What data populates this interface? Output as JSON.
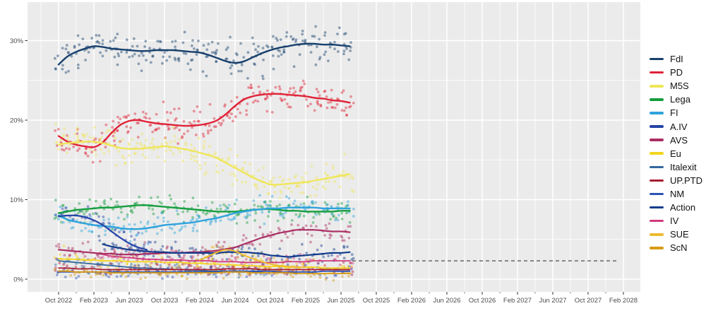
{
  "chart_data": {
    "type": "scatter",
    "title": "",
    "description": "Opinion polling trend chart: per-party poll results (scatter) with smoothed trend lines, October 2022 to July 2025, axis extended to February 2028",
    "panel_background": "#ebebeb",
    "gridline_color": "#ffffff",
    "axis_text_color": "#4d4d4d",
    "y_tick_labels": [
      "0%",
      "10%",
      "20%",
      "30%"
    ],
    "y_tick_values": [
      0,
      10,
      20,
      30
    ],
    "y_minor_gridlines": [
      5,
      15,
      25
    ],
    "y_axis_range": [
      0,
      33
    ],
    "x_tick_labels": [
      "Oct 2022",
      "Feb 2023",
      "Jun 2023",
      "Oct 2023",
      "Feb 2024",
      "Jun 2024",
      "Oct 2024",
      "Feb 2025",
      "Jun 2025",
      "Oct 2025",
      "Feb 2026",
      "Jun 2026",
      "Oct 2026",
      "Feb 2027",
      "Jun 2027",
      "Oct 2027",
      "Feb 2028"
    ],
    "x_tick_interval_months": 4,
    "x_start_month": "Oct 2022",
    "data_end_month": "Jul 2025",
    "legend_position": "right",
    "grid": true,
    "threshold_line": {
      "pct": 2.3,
      "style": "dashed",
      "color": "#4d4d4d",
      "spans": "from end of poll data to right edge"
    },
    "series": [
      {
        "name": "FdI",
        "color": "#17406d",
        "width": 2.4,
        "start": 0,
        "dots": 7,
        "spread": 1.1,
        "values": [
          27.0,
          28.0,
          28.6,
          29.0,
          29.3,
          29.2,
          29.0,
          28.9,
          28.8,
          28.7,
          28.7,
          28.8,
          28.8,
          28.8,
          28.7,
          28.6,
          28.5,
          28.2,
          27.8,
          27.4,
          27.2,
          27.4,
          27.9,
          28.4,
          28.8,
          29.1,
          29.3,
          29.5,
          29.6,
          29.6,
          29.5,
          29.5,
          29.4,
          29.3
        ]
      },
      {
        "name": "PD",
        "color": "#e02338",
        "width": 2.4,
        "start": 0,
        "dots": 7,
        "spread": 1.0,
        "values": [
          18.0,
          17.3,
          16.9,
          16.7,
          16.6,
          17.2,
          18.4,
          19.4,
          19.9,
          20.0,
          19.8,
          19.6,
          19.5,
          19.4,
          19.3,
          19.3,
          19.4,
          19.6,
          20.0,
          20.8,
          21.8,
          22.6,
          23.0,
          23.2,
          23.3,
          23.3,
          23.2,
          23.1,
          23.0,
          22.8,
          22.7,
          22.5,
          22.4,
          22.2
        ]
      },
      {
        "name": "M5S",
        "color": "#efe65a",
        "width": 2.4,
        "start": 0,
        "dots": 7,
        "spread": 1.0,
        "values": [
          16.9,
          17.1,
          17.2,
          17.3,
          17.3,
          17.1,
          16.8,
          16.5,
          16.4,
          16.4,
          16.5,
          16.6,
          16.7,
          16.6,
          16.4,
          16.2,
          15.9,
          15.6,
          15.2,
          14.6,
          14.0,
          13.4,
          12.8,
          12.3,
          11.9,
          11.9,
          12.0,
          12.1,
          12.2,
          12.4,
          12.6,
          12.8,
          13.0,
          13.2
        ]
      },
      {
        "name": "Lega",
        "color": "#169e3e",
        "width": 2.4,
        "start": 0,
        "dots": 5,
        "spread": 0.75,
        "values": [
          8.3,
          8.5,
          8.7,
          8.8,
          8.9,
          9.0,
          9.0,
          9.1,
          9.2,
          9.3,
          9.3,
          9.2,
          9.1,
          9.0,
          8.9,
          8.8,
          8.7,
          8.6,
          8.5,
          8.5,
          8.5,
          8.6,
          8.7,
          8.8,
          8.8,
          8.7,
          8.6,
          8.6,
          8.5,
          8.5,
          8.5,
          8.5,
          8.6,
          8.6
        ]
      },
      {
        "name": "FI",
        "color": "#2fa3dc",
        "width": 2.4,
        "start": 0,
        "dots": 5,
        "spread": 0.75,
        "values": [
          8.0,
          7.5,
          7.2,
          7.0,
          6.8,
          6.7,
          6.6,
          6.4,
          6.3,
          6.3,
          6.4,
          6.6,
          6.8,
          6.9,
          7.0,
          7.1,
          7.3,
          7.5,
          7.7,
          8.0,
          8.3,
          8.5,
          8.7,
          8.8,
          8.9,
          8.9,
          9.0,
          9.0,
          9.0,
          9.0,
          8.9,
          8.9,
          8.9,
          8.9
        ]
      },
      {
        "name": "A.IV",
        "color": "#2443a5",
        "width": 2.2,
        "start": 0,
        "dots": 4,
        "spread": 0.7,
        "values": [
          7.9,
          8.0,
          8.0,
          7.8,
          7.4,
          6.8,
          6.0,
          5.2,
          4.5,
          4.0,
          3.7
        ]
      },
      {
        "name": "AVS",
        "color": "#aa2e63",
        "width": 2.2,
        "start": 0,
        "dots": 4,
        "spread": 0.6,
        "values": [
          3.7,
          3.6,
          3.5,
          3.4,
          3.3,
          3.2,
          3.2,
          3.1,
          3.1,
          3.1,
          3.2,
          3.2,
          3.3,
          3.3,
          3.3,
          3.4,
          3.4,
          3.5,
          3.6,
          3.8,
          4.0,
          4.4,
          4.8,
          5.2,
          5.5,
          5.8,
          6.0,
          6.2,
          6.2,
          6.2,
          6.1,
          6.0,
          6.0,
          5.9
        ]
      },
      {
        "name": "Eu",
        "color": "#f4d520",
        "width": 1.8,
        "start": 0,
        "dots": 3,
        "spread": 0.45,
        "values": [
          2.6,
          2.5,
          2.5,
          2.4,
          2.4,
          2.3,
          2.3,
          2.3,
          2.2,
          2.2,
          2.2,
          2.2,
          2.1,
          2.1,
          2.1,
          2.0,
          2.0,
          1.9,
          1.9,
          1.8,
          1.8,
          1.7,
          1.7,
          1.6,
          1.6,
          1.6,
          1.5,
          1.5,
          1.5,
          1.5,
          1.4,
          1.4,
          1.4,
          1.4
        ]
      },
      {
        "name": "Italexit",
        "color": "#33689e",
        "width": 1.8,
        "start": 0,
        "dots": 3,
        "spread": 0.4,
        "values": [
          2.3,
          2.2,
          2.1,
          2.0,
          1.9,
          1.8,
          1.7,
          1.6,
          1.5,
          1.4,
          1.4,
          1.3,
          1.3,
          1.2,
          1.2,
          1.1,
          1.1,
          1.0,
          1.0,
          1.0,
          0.9,
          0.9,
          0.9,
          0.9
        ]
      },
      {
        "name": "UP.PTD",
        "color": "#a81d33",
        "width": 1.8,
        "start": 0,
        "dots": 3,
        "spread": 0.35,
        "values": [
          1.4,
          1.4,
          1.3,
          1.3,
          1.3,
          1.2,
          1.2,
          1.2,
          1.2,
          1.2,
          1.2,
          1.2,
          1.2,
          1.2,
          1.2,
          1.2,
          1.2,
          1.2,
          1.2,
          1.3,
          1.3,
          1.3,
          1.3,
          1.2,
          1.2,
          1.2,
          1.2,
          1.2,
          1.2,
          1.2,
          1.2,
          1.2,
          1.2,
          1.2
        ]
      },
      {
        "name": "NM",
        "color": "#2d52b5",
        "width": 1.8,
        "start": 0,
        "dots": 3,
        "spread": 0.35,
        "values": [
          0.9,
          0.9,
          0.9,
          0.9,
          0.9,
          0.9,
          0.9,
          0.9,
          0.9,
          0.9,
          0.9,
          0.9,
          0.9,
          0.9,
          0.9,
          0.9,
          0.9,
          0.9,
          0.9,
          1.0,
          1.0,
          1.0,
          1.0,
          1.0,
          1.0,
          0.9,
          0.9,
          0.9,
          0.9,
          0.9,
          1.0,
          1.0,
          1.0,
          1.0
        ]
      },
      {
        "name": "Action",
        "color": "#123c8c",
        "width": 2.2,
        "start": 5,
        "dots": 4,
        "spread": 0.55,
        "values": [
          4.4,
          4.1,
          3.9,
          3.7,
          3.6,
          3.5,
          3.4,
          3.4,
          3.3,
          3.3,
          3.3,
          3.3,
          3.3,
          3.3,
          3.4,
          3.4,
          3.4,
          3.3,
          3.2,
          3.0,
          2.9,
          2.8,
          2.9,
          3.0,
          3.1,
          3.2,
          3.3,
          3.3,
          3.4
        ]
      },
      {
        "name": "IV",
        "color": "#d13a7d",
        "width": 1.8,
        "start": 5,
        "dots": 3,
        "spread": 0.45,
        "values": [
          3.1,
          2.9,
          2.8,
          2.7,
          2.6,
          2.5,
          2.5,
          2.4,
          2.4,
          2.4,
          2.3,
          2.3,
          2.3,
          2.2,
          2.2,
          2.2,
          2.1,
          2.1,
          2.1,
          2.1,
          2.1,
          2.2,
          2.2,
          2.2,
          2.3,
          2.3,
          2.3,
          2.3,
          2.3
        ]
      },
      {
        "name": "SUE",
        "color": "#edba2f",
        "width": 2.0,
        "start": 16,
        "dots": 4,
        "spread": 0.5,
        "values": [
          2.4,
          2.9,
          3.4,
          3.7,
          3.5,
          3.0,
          2.6,
          2.2,
          1.9,
          1.7,
          1.6,
          1.5,
          1.5
        ]
      },
      {
        "name": "ScN",
        "color": "#d79b16",
        "width": 1.8,
        "start": 0,
        "dots": 3,
        "spread": 0.35,
        "values": [
          1.0,
          1.0,
          0.9,
          0.9,
          0.9,
          0.9,
          0.8,
          0.8,
          0.8,
          0.8,
          0.8,
          0.8,
          0.8,
          0.8,
          0.8,
          0.8,
          0.8,
          0.8,
          0.8,
          0.9,
          0.9,
          0.9,
          0.8,
          0.8,
          0.8,
          0.8,
          0.8,
          0.7,
          0.7,
          0.7,
          0.7,
          0.7,
          0.7,
          0.7
        ]
      }
    ]
  }
}
